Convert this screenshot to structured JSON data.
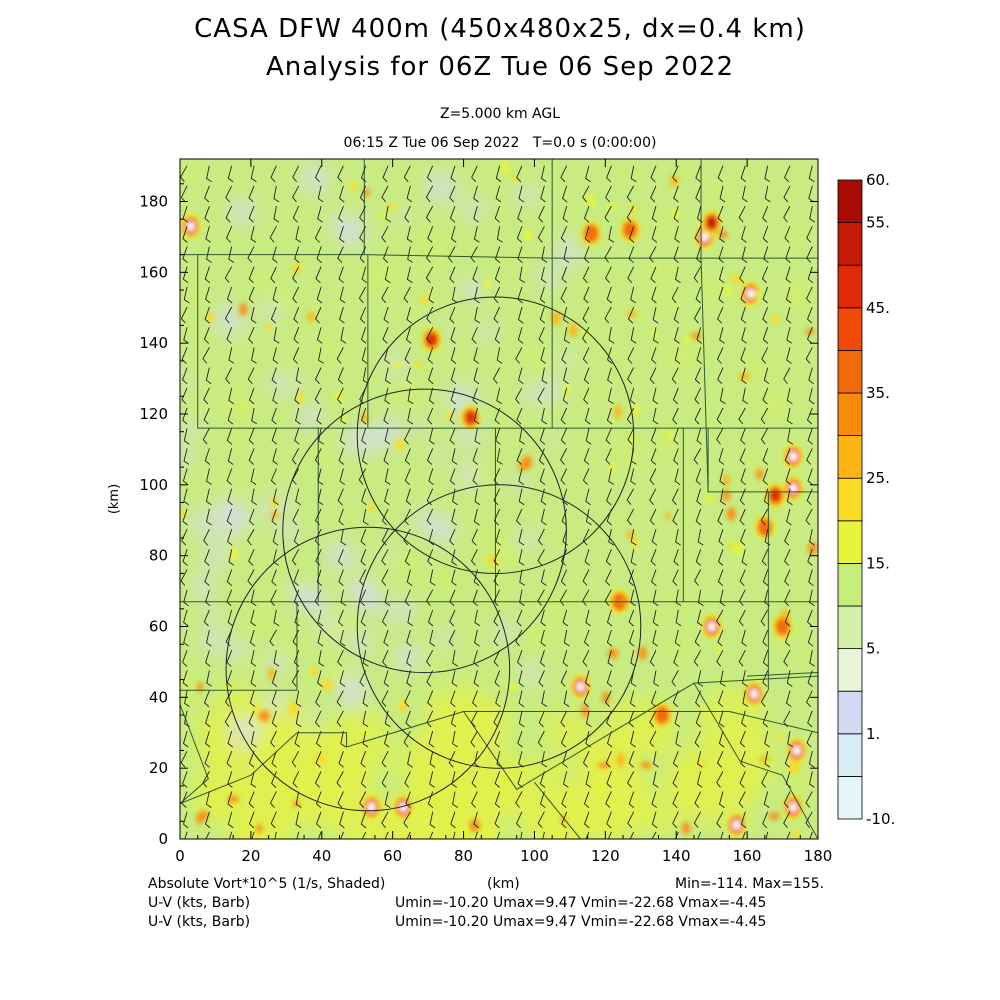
{
  "header": {
    "title_line1": "CASA DFW 400m (450x480x25, dx=0.4 km)",
    "title_line2": "Analysis for 06Z Tue 06 Sep 2022",
    "level": "Z=5.000 km AGL",
    "valid_time": "06:15 Z Tue 06 Sep 2022",
    "forecast_time": "T=0.0 s (0:00:00)"
  },
  "footer": {
    "field_label": "Absolute Vort*10^5 (1/s, Shaded)",
    "x_unit": "(km)",
    "minmax": "Min=-114. Max=155.",
    "barb_label_1": "U-V (kts, Barb)",
    "barb_label_2": "U-V (kts, Barb)",
    "uv_range_1": "Umin=-10.20 Umax=9.47 Vmin=-22.68 Vmax=-4.45",
    "uv_range_2": "Umin=-10.20 Umax=9.47 Vmin=-22.68 Vmax=-4.45"
  },
  "chart_data": {
    "type": "heatmap",
    "field": "absolute vorticity x 10^5 (1/s)",
    "ylabel": "(km)",
    "xlabel": "(km)",
    "xlim": [
      0,
      180
    ],
    "ylim": [
      0,
      192
    ],
    "x_ticks": [
      "0",
      "20",
      "40",
      "60",
      "80",
      "100",
      "120",
      "140",
      "160",
      "180"
    ],
    "y_ticks": [
      "0",
      "20",
      "40",
      "60",
      "80",
      "100",
      "120",
      "140",
      "160",
      "180"
    ],
    "colorbar": {
      "levels": [
        -10,
        -5,
        1,
        3,
        5,
        10,
        15,
        20,
        25,
        30,
        35,
        40,
        45,
        50,
        55,
        60
      ],
      "labels": [
        "-10.",
        "1.",
        "5.",
        "15.",
        "25.",
        "35.",
        "45.",
        "55.",
        "60."
      ],
      "colors": [
        "#e6f5fb",
        "#d7ecf5",
        "#d2d9f2",
        "#e8f5d6",
        "#d4f0a8",
        "#c4ed7a",
        "#e6f53c",
        "#fbdc24",
        "#fcb514",
        "#fb8c0a",
        "#f26a08",
        "#f04a06",
        "#e02a06",
        "#c41a06",
        "#a80c04"
      ],
      "colors_note": "from bottom (-10) to top (60)"
    },
    "background_colors": {
      "dominant": "#c8ec82",
      "south_yellow": "#e2f04c",
      "lavender": "#d6dcf0"
    },
    "vorticity_maxima": [
      {
        "x": 3,
        "y": 173,
        "value": 60
      },
      {
        "x": 148,
        "y": 170,
        "value": 60
      },
      {
        "x": 150,
        "y": 174,
        "value": 55
      },
      {
        "x": 161,
        "y": 154,
        "value": 60
      },
      {
        "x": 71,
        "y": 141,
        "value": 45
      },
      {
        "x": 82,
        "y": 119,
        "value": 45
      },
      {
        "x": 116,
        "y": 171,
        "value": 40
      },
      {
        "x": 127,
        "y": 172,
        "value": 40
      },
      {
        "x": 173,
        "y": 108,
        "value": 60
      },
      {
        "x": 173,
        "y": 99,
        "value": 60
      },
      {
        "x": 168,
        "y": 97,
        "value": 45
      },
      {
        "x": 165,
        "y": 88,
        "value": 40
      },
      {
        "x": 150,
        "y": 60,
        "value": 60
      },
      {
        "x": 162,
        "y": 41,
        "value": 60
      },
      {
        "x": 113,
        "y": 43,
        "value": 60
      },
      {
        "x": 174,
        "y": 25,
        "value": 60
      },
      {
        "x": 54,
        "y": 9,
        "value": 60
      },
      {
        "x": 63,
        "y": 9,
        "value": 60
      },
      {
        "x": 157,
        "y": 4,
        "value": 60
      },
      {
        "x": 173,
        "y": 9,
        "value": 60
      },
      {
        "x": 136,
        "y": 35,
        "value": 40
      },
      {
        "x": 124,
        "y": 67,
        "value": 35
      },
      {
        "x": 170,
        "y": 60,
        "value": 40
      }
    ],
    "radar_range_rings_km": [
      {
        "center": [
          89,
          114
        ],
        "radius": 39
      },
      {
        "center": [
          69,
          87
        ],
        "radius": 40
      },
      {
        "center": [
          90,
          60
        ],
        "radius": 40
      },
      {
        "center": [
          53,
          48
        ],
        "radius": 40
      }
    ],
    "wind_barbs": {
      "u_range": [
        -10.2,
        9.47
      ],
      "v_range": [
        -22.68,
        -4.45
      ],
      "units": "kts"
    }
  }
}
